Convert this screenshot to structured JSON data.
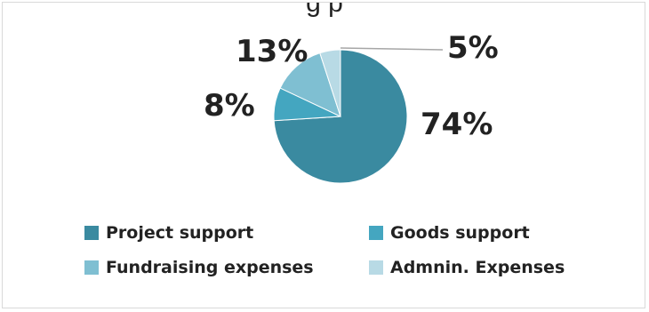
{
  "title_fragment": "g p",
  "chart_data": {
    "type": "pie",
    "categories": [
      "Project support",
      "Goods support",
      "Fundraising expenses",
      "Admnin. Expenses"
    ],
    "values": [
      74,
      8,
      13,
      5
    ],
    "data_labels": [
      "74%",
      "8%",
      "13%",
      "5%"
    ],
    "colors": [
      "#3a8aa0",
      "#44a6c0",
      "#7fbfd2",
      "#b8dae5"
    ],
    "legend_position": "bottom"
  }
}
